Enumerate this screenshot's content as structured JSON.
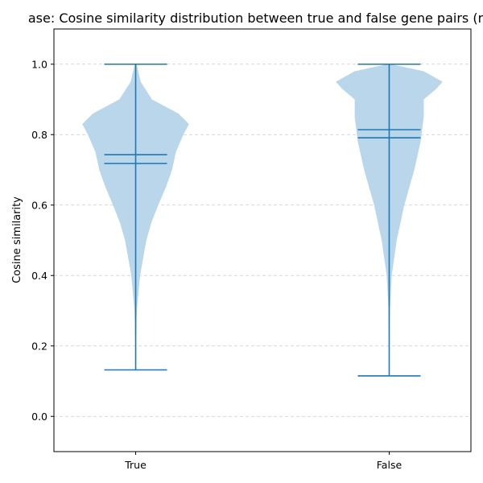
{
  "chart_data": {
    "type": "violin",
    "title": "ase: Cosine similarity distribution between true and false gene pairs (n=",
    "xlabel": "",
    "ylabel": "Cosine similarity",
    "ylim": [
      -0.1,
      1.1
    ],
    "yticks": [
      "0.0",
      "0.2",
      "0.4",
      "0.6",
      "0.8",
      "1.0"
    ],
    "grid": "horizontal dashed",
    "categories": [
      "True",
      "False"
    ],
    "violins": [
      {
        "name": "True",
        "min": 0.132,
        "max": 1.0,
        "mean": 0.743,
        "median": 0.718,
        "density": [
          [
            0.132,
            0.003
          ],
          [
            0.2,
            0.006
          ],
          [
            0.3,
            0.018
          ],
          [
            0.4,
            0.07
          ],
          [
            0.5,
            0.17
          ],
          [
            0.55,
            0.25
          ],
          [
            0.6,
            0.36
          ],
          [
            0.65,
            0.48
          ],
          [
            0.7,
            0.58
          ],
          [
            0.75,
            0.64
          ],
          [
            0.8,
            0.76
          ],
          [
            0.83,
            0.85
          ],
          [
            0.86,
            0.68
          ],
          [
            0.9,
            0.26
          ],
          [
            0.95,
            0.08
          ],
          [
            1.0,
            0.015
          ]
        ]
      },
      {
        "name": "False",
        "min": 0.115,
        "max": 1.0,
        "mean": 0.814,
        "median": 0.791,
        "density": [
          [
            0.115,
            0.003
          ],
          [
            0.2,
            0.004
          ],
          [
            0.3,
            0.01
          ],
          [
            0.4,
            0.04
          ],
          [
            0.5,
            0.12
          ],
          [
            0.6,
            0.24
          ],
          [
            0.7,
            0.4
          ],
          [
            0.78,
            0.5
          ],
          [
            0.85,
            0.55
          ],
          [
            0.9,
            0.55
          ],
          [
            0.93,
            0.75
          ],
          [
            0.95,
            0.85
          ],
          [
            0.98,
            0.55
          ],
          [
            1.0,
            0.03
          ]
        ]
      }
    ],
    "colors": {
      "body": "#bad6ea",
      "lines": "#1f77b4",
      "grid": "#cccccc"
    }
  }
}
